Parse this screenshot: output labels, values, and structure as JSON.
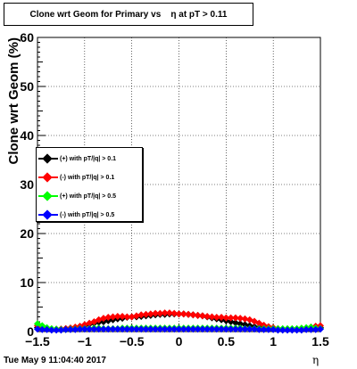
{
  "chart_data": {
    "type": "scatter",
    "title": "Clone wrt Geom for Primary vs    η at pT > 0.11",
    "ylabel": "Clone wrt Geom (%)",
    "xlabel": "η",
    "xlim": [
      -1.5,
      1.5
    ],
    "ylim": [
      0,
      60
    ],
    "grid": true,
    "legend_position": "left",
    "x_ticks": [
      -1.5,
      -1,
      -0.5,
      0,
      0.5,
      1,
      1.5
    ],
    "x_tick_labels": [
      "−1.5",
      "−1",
      "−0.5",
      "0",
      "0.5",
      "1",
      "1.5"
    ],
    "y_ticks": [
      0,
      10,
      20,
      30,
      40,
      50,
      60
    ],
    "y_tick_labels": [
      "0",
      "10",
      "20",
      "30",
      "40",
      "50",
      "60"
    ],
    "x": [
      -1.5,
      -1.45,
      -1.4,
      -1.35,
      -1.3,
      -1.25,
      -1.2,
      -1.15,
      -1.1,
      -1.05,
      -1.0,
      -0.95,
      -0.9,
      -0.85,
      -0.8,
      -0.75,
      -0.7,
      -0.65,
      -0.6,
      -0.55,
      -0.5,
      -0.45,
      -0.4,
      -0.35,
      -0.3,
      -0.25,
      -0.2,
      -0.15,
      -0.1,
      -0.05,
      0.0,
      0.05,
      0.1,
      0.15,
      0.2,
      0.25,
      0.3,
      0.35,
      0.4,
      0.45,
      0.5,
      0.55,
      0.6,
      0.65,
      0.7,
      0.75,
      0.8,
      0.85,
      0.9,
      0.95,
      1.0,
      1.05,
      1.1,
      1.15,
      1.2,
      1.25,
      1.3,
      1.35,
      1.4,
      1.45,
      1.5
    ],
    "series": [
      {
        "name": "(+) with pT/|q| > 0.1",
        "color": "#000000",
        "values": [
          0.8,
          0.6,
          0.5,
          0.4,
          0.4,
          0.5,
          0.6,
          0.7,
          0.8,
          1.0,
          1.2,
          1.5,
          1.7,
          1.9,
          2.0,
          2.2,
          2.4,
          2.6,
          2.7,
          2.9,
          3.0,
          3.0,
          3.1,
          3.2,
          3.3,
          3.4,
          3.5,
          3.5,
          3.6,
          3.6,
          3.6,
          3.6,
          3.5,
          3.4,
          3.3,
          3.2,
          3.0,
          2.8,
          2.6,
          2.4,
          2.2,
          2.0,
          1.8,
          1.6,
          1.4,
          1.2,
          1.0,
          0.8,
          0.7,
          0.6,
          0.5,
          0.4,
          0.4,
          0.4,
          0.4,
          0.4,
          0.4,
          0.5,
          0.6,
          0.7,
          0.8
        ]
      },
      {
        "name": "(-) with pT/|q| > 0.1",
        "color": "#ff0000",
        "values": [
          1.2,
          0.9,
          0.6,
          0.5,
          0.5,
          0.5,
          0.6,
          0.7,
          0.9,
          1.1,
          1.4,
          1.7,
          2.0,
          2.4,
          2.7,
          2.9,
          3.0,
          3.1,
          3.1,
          3.0,
          3.0,
          3.2,
          3.4,
          3.5,
          3.6,
          3.7,
          3.7,
          3.8,
          3.8,
          3.7,
          3.6,
          3.6,
          3.5,
          3.4,
          3.3,
          3.2,
          3.1,
          3.0,
          2.9,
          2.9,
          2.8,
          2.8,
          2.8,
          2.7,
          2.6,
          2.4,
          2.1,
          1.7,
          1.3,
          1.0,
          0.8,
          0.6,
          0.5,
          0.5,
          0.5,
          0.5,
          0.6,
          0.7,
          0.9,
          1.1,
          1.2
        ]
      },
      {
        "name": "(+) with pT/|q| > 0.5",
        "color": "#00ff00",
        "values": [
          1.6,
          1.2,
          0.8,
          0.6,
          0.5,
          0.4,
          0.4,
          0.5,
          0.5,
          0.6,
          0.6,
          0.6,
          0.7,
          0.7,
          0.6,
          0.6,
          0.6,
          0.6,
          0.7,
          0.7,
          0.7,
          0.7,
          0.7,
          0.7,
          0.7,
          0.7,
          0.7,
          0.7,
          0.7,
          0.7,
          0.7,
          0.7,
          0.7,
          0.7,
          0.7,
          0.7,
          0.7,
          0.7,
          0.7,
          0.7,
          0.7,
          0.7,
          0.7,
          0.7,
          0.6,
          0.6,
          0.6,
          0.6,
          0.6,
          0.6,
          0.6,
          0.6,
          0.6,
          0.6,
          0.6,
          0.6,
          0.7,
          0.8,
          0.9,
          0.7,
          0.6
        ]
      },
      {
        "name": "(-) with pT/|q| > 0.5",
        "color": "#0000ff",
        "values": [
          0.5,
          0.4,
          0.4,
          0.3,
          0.3,
          0.3,
          0.4,
          0.4,
          0.4,
          0.5,
          0.5,
          0.5,
          0.5,
          0.5,
          0.5,
          0.5,
          0.5,
          0.5,
          0.5,
          0.5,
          0.5,
          0.5,
          0.5,
          0.5,
          0.5,
          0.5,
          0.5,
          0.5,
          0.5,
          0.5,
          0.5,
          0.5,
          0.5,
          0.5,
          0.5,
          0.5,
          0.5,
          0.5,
          0.5,
          0.5,
          0.5,
          0.5,
          0.5,
          0.5,
          0.5,
          0.5,
          0.5,
          0.4,
          0.4,
          0.4,
          0.4,
          0.3,
          0.3,
          0.3,
          0.3,
          0.3,
          0.3,
          0.4,
          0.4,
          0.4,
          0.5
        ]
      }
    ]
  },
  "footer": {
    "datestamp": "Tue May  9 11:04:40 2017",
    "eta_label": "η"
  }
}
